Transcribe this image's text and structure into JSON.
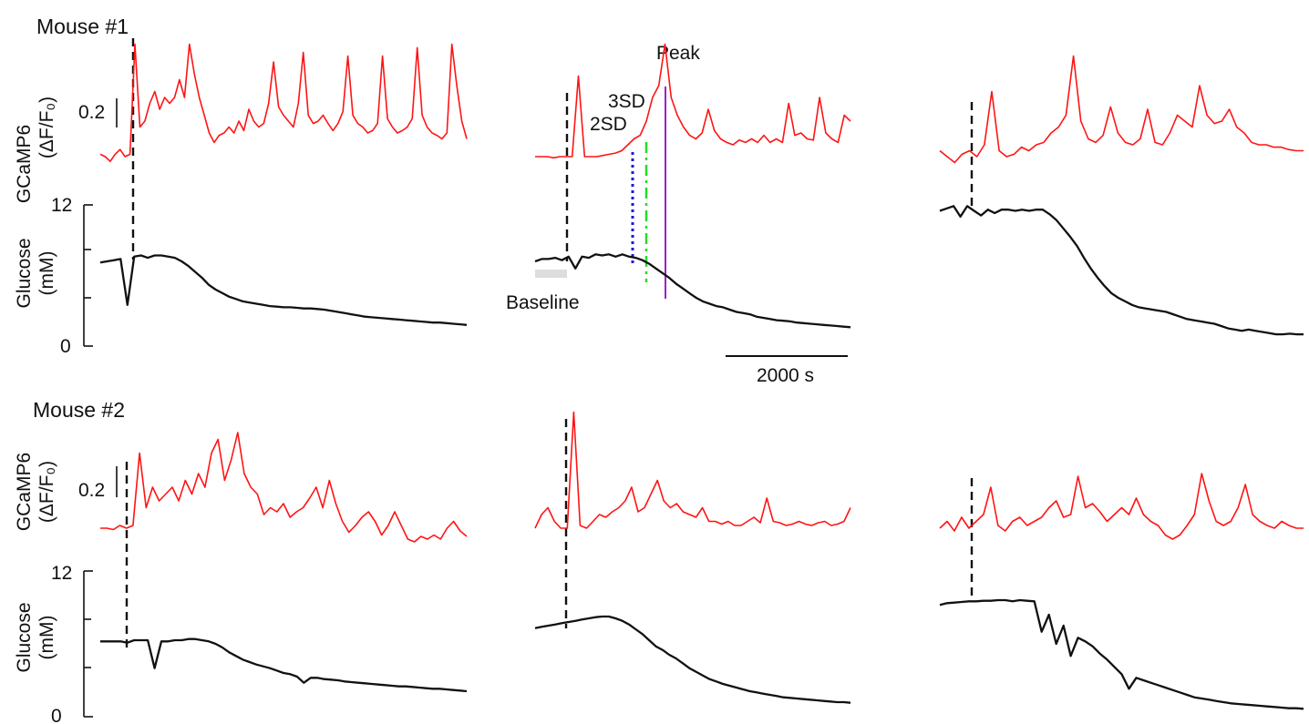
{
  "figure": {
    "mouse1_title": "Mouse #1",
    "mouse2_title": "Mouse #2",
    "gcamp_label_line1": "GCaMP6",
    "gcamp_label_line2": "(ΔF/F₀)",
    "glucose_label_line1": "Glucose",
    "glucose_label_line2": "(mM)",
    "gcamp_scale_label": "0.2",
    "time_scale_label": "2000 s",
    "annotation_peak": "Peak",
    "annotation_3sd": "3SD",
    "annotation_2sd": "2SD",
    "annotation_baseline": "Baseline",
    "colors": {
      "gcamp": "#ff1414",
      "glucose": "#111111",
      "sd2_line": "#1a1adc",
      "sd3_line": "#22dd22",
      "peak_line": "#a020c8",
      "baseline_bar": "#dddddd"
    }
  },
  "chart_data": {
    "type": "line",
    "glucose_axis": {
      "ylim": [
        0,
        12
      ],
      "ticks": [
        "0",
        "12"
      ],
      "unit": "mM"
    },
    "gcamp_scale_value": 0.2,
    "time_scale_value_s": 2000,
    "panels": [
      {
        "mouse": "Mouse #1",
        "column": 1,
        "gcamp": [
          0.02,
          0.0,
          -0.04,
          0.02,
          0.06,
          0.0,
          0.02,
          0.95,
          0.25,
          0.3,
          0.45,
          0.55,
          0.4,
          0.5,
          0.45,
          0.5,
          0.65,
          0.5,
          0.95,
          0.7,
          0.5,
          0.35,
          0.2,
          0.12,
          0.18,
          0.2,
          0.25,
          0.2,
          0.3,
          0.22,
          0.4,
          0.3,
          0.25,
          0.28,
          0.45,
          0.8,
          0.42,
          0.35,
          0.3,
          0.25,
          0.45,
          0.88,
          0.35,
          0.28,
          0.3,
          0.35,
          0.28,
          0.22,
          0.28,
          0.38,
          0.85,
          0.35,
          0.28,
          0.25,
          0.2,
          0.22,
          0.28,
          0.85,
          0.32,
          0.25,
          0.2,
          0.22,
          0.25,
          0.32,
          0.92,
          0.35,
          0.25,
          0.2,
          0.18,
          0.15,
          0.2,
          0.95,
          0.6,
          0.3,
          0.15
        ],
        "glucose": [
          7.1,
          7.2,
          7.3,
          7.4,
          3.5,
          7.6,
          7.7,
          7.5,
          7.7,
          7.7,
          7.6,
          7.5,
          7.2,
          6.8,
          6.3,
          5.8,
          5.2,
          4.8,
          4.5,
          4.2,
          4.0,
          3.8,
          3.7,
          3.6,
          3.5,
          3.4,
          3.35,
          3.3,
          3.3,
          3.25,
          3.2,
          3.2,
          3.15,
          3.1,
          3.0,
          2.9,
          2.8,
          2.7,
          2.6,
          2.5,
          2.45,
          2.4,
          2.35,
          2.3,
          2.25,
          2.2,
          2.15,
          2.1,
          2.05,
          2.0,
          2.0,
          1.95,
          1.9,
          1.85,
          1.8
        ]
      },
      {
        "mouse": "Mouse #1",
        "column": 2,
        "gcamp": [
          0.0,
          0.0,
          0.0,
          -0.01,
          0.0,
          0.0,
          0.0,
          0.68,
          0.0,
          0.0,
          0.0,
          0.01,
          0.02,
          0.03,
          0.05,
          0.1,
          0.15,
          0.18,
          0.3,
          0.5,
          0.6,
          0.95,
          0.5,
          0.35,
          0.25,
          0.18,
          0.15,
          0.2,
          0.4,
          0.22,
          0.15,
          0.12,
          0.1,
          0.14,
          0.12,
          0.15,
          0.12,
          0.18,
          0.12,
          0.15,
          0.12,
          0.45,
          0.18,
          0.2,
          0.15,
          0.14,
          0.5,
          0.2,
          0.15,
          0.12,
          0.35,
          0.3
        ],
        "glucose": [
          7.2,
          7.4,
          7.4,
          7.5,
          7.3,
          7.6,
          6.6,
          7.6,
          7.5,
          7.8,
          7.7,
          7.8,
          7.6,
          7.8,
          7.6,
          7.5,
          7.3,
          7.0,
          6.6,
          6.2,
          5.8,
          5.3,
          4.9,
          4.5,
          4.1,
          3.8,
          3.6,
          3.4,
          3.3,
          3.1,
          2.9,
          2.8,
          2.7,
          2.5,
          2.4,
          2.3,
          2.2,
          2.15,
          2.1,
          2.0,
          1.95,
          1.9,
          1.85,
          1.8,
          1.75,
          1.7,
          1.65,
          1.6
        ]
      },
      {
        "mouse": "Mouse #1",
        "column": 3,
        "gcamp": [
          0.05,
          0.0,
          -0.05,
          0.02,
          0.05,
          0.0,
          0.1,
          0.55,
          0.05,
          0.0,
          0.02,
          0.08,
          0.05,
          0.1,
          0.12,
          0.2,
          0.25,
          0.35,
          0.85,
          0.3,
          0.15,
          0.12,
          0.18,
          0.42,
          0.2,
          0.12,
          0.1,
          0.15,
          0.4,
          0.12,
          0.1,
          0.2,
          0.35,
          0.3,
          0.25,
          0.6,
          0.35,
          0.28,
          0.3,
          0.4,
          0.25,
          0.2,
          0.12,
          0.1,
          0.1,
          0.08,
          0.08,
          0.06,
          0.05,
          0.05
        ],
        "glucose": [
          11.5,
          11.7,
          11.9,
          11.0,
          11.9,
          11.5,
          11.1,
          11.6,
          11.3,
          11.6,
          11.6,
          11.5,
          11.6,
          11.5,
          11.6,
          11.6,
          11.2,
          10.7,
          10.0,
          9.3,
          8.5,
          7.5,
          6.6,
          5.8,
          5.1,
          4.5,
          4.1,
          3.8,
          3.5,
          3.3,
          3.2,
          3.1,
          3.0,
          2.9,
          2.7,
          2.5,
          2.3,
          2.2,
          2.1,
          2.0,
          1.9,
          1.7,
          1.5,
          1.4,
          1.3,
          1.4,
          1.3,
          1.2,
          1.1,
          1.0,
          1.0,
          1.05,
          1.0,
          1.0
        ]
      },
      {
        "mouse": "Mouse #2",
        "column": 1,
        "gcamp": [
          0.0,
          0.0,
          -0.01,
          0.02,
          0.0,
          0.02,
          0.55,
          0.15,
          0.3,
          0.2,
          0.25,
          0.3,
          0.2,
          0.35,
          0.25,
          0.4,
          0.3,
          0.55,
          0.65,
          0.35,
          0.5,
          0.7,
          0.4,
          0.3,
          0.25,
          0.1,
          0.15,
          0.12,
          0.18,
          0.08,
          0.12,
          0.15,
          0.22,
          0.3,
          0.15,
          0.35,
          0.18,
          0.05,
          -0.03,
          0.02,
          0.08,
          0.12,
          0.05,
          -0.05,
          0.02,
          0.12,
          0.02,
          -0.08,
          -0.1,
          -0.06,
          -0.08,
          -0.05,
          -0.08,
          0.0,
          0.05,
          -0.02,
          -0.06
        ],
        "glucose": [
          6.2,
          6.2,
          6.2,
          6.2,
          6.1,
          6.3,
          6.3,
          6.3,
          4.0,
          6.2,
          6.2,
          6.3,
          6.3,
          6.4,
          6.4,
          6.3,
          6.2,
          6.0,
          5.7,
          5.3,
          5.0,
          4.7,
          4.5,
          4.3,
          4.15,
          4.0,
          3.8,
          3.6,
          3.5,
          3.3,
          2.8,
          3.2,
          3.2,
          3.1,
          3.05,
          3.0,
          2.9,
          2.85,
          2.8,
          2.75,
          2.7,
          2.65,
          2.6,
          2.55,
          2.5,
          2.5,
          2.45,
          2.4,
          2.35,
          2.3,
          2.3,
          2.25,
          2.2,
          2.15,
          2.1
        ]
      },
      {
        "mouse": "Mouse #2",
        "column": 2,
        "gcamp": [
          0.0,
          0.1,
          0.15,
          0.05,
          0.0,
          0.0,
          0.85,
          0.02,
          0.0,
          0.05,
          0.1,
          0.08,
          0.12,
          0.15,
          0.2,
          0.3,
          0.12,
          0.15,
          0.25,
          0.35,
          0.2,
          0.15,
          0.18,
          0.12,
          0.1,
          0.08,
          0.15,
          0.05,
          0.05,
          0.03,
          0.05,
          0.02,
          0.02,
          0.05,
          0.08,
          0.04,
          0.22,
          0.05,
          0.04,
          0.02,
          0.03,
          0.05,
          0.03,
          0.02,
          0.04,
          0.05,
          0.02,
          0.03,
          0.05,
          0.15
        ],
        "glucose": [
          7.3,
          7.4,
          7.5,
          7.6,
          7.7,
          7.8,
          7.9,
          8.0,
          8.1,
          8.2,
          8.25,
          8.25,
          8.1,
          7.9,
          7.6,
          7.2,
          6.8,
          6.3,
          5.8,
          5.5,
          5.1,
          4.8,
          4.4,
          4.0,
          3.7,
          3.4,
          3.1,
          2.9,
          2.7,
          2.55,
          2.4,
          2.25,
          2.1,
          2.0,
          1.9,
          1.8,
          1.7,
          1.6,
          1.55,
          1.5,
          1.45,
          1.4,
          1.35,
          1.3,
          1.25,
          1.2,
          1.2,
          1.15
        ]
      },
      {
        "mouse": "Mouse #2",
        "column": 3,
        "gcamp": [
          0.0,
          0.05,
          -0.02,
          0.08,
          0.0,
          0.05,
          0.1,
          0.3,
          0.02,
          -0.02,
          0.05,
          0.08,
          0.02,
          0.05,
          0.08,
          0.15,
          0.2,
          0.08,
          0.1,
          0.38,
          0.15,
          0.18,
          0.12,
          0.05,
          0.1,
          0.15,
          0.1,
          0.22,
          0.1,
          0.05,
          0.02,
          -0.05,
          -0.08,
          -0.05,
          0.02,
          0.1,
          0.4,
          0.2,
          0.05,
          0.02,
          0.05,
          0.15,
          0.32,
          0.1,
          0.05,
          0.02,
          0.0,
          0.05,
          0.02,
          0.0,
          0.0
        ],
        "glucose": [
          9.2,
          9.35,
          9.4,
          9.45,
          9.5,
          9.5,
          9.55,
          9.55,
          9.6,
          9.6,
          9.5,
          9.6,
          9.55,
          9.5,
          7.0,
          8.4,
          6.0,
          7.5,
          5.0,
          6.5,
          6.2,
          5.8,
          5.2,
          4.7,
          4.1,
          3.5,
          2.3,
          3.2,
          3.0,
          2.8,
          2.6,
          2.4,
          2.2,
          2.0,
          1.8,
          1.6,
          1.5,
          1.4,
          1.3,
          1.2,
          1.1,
          1.05,
          1.0,
          0.95,
          0.9,
          0.85,
          0.8,
          0.75,
          0.7,
          0.7,
          0.65
        ]
      }
    ]
  }
}
